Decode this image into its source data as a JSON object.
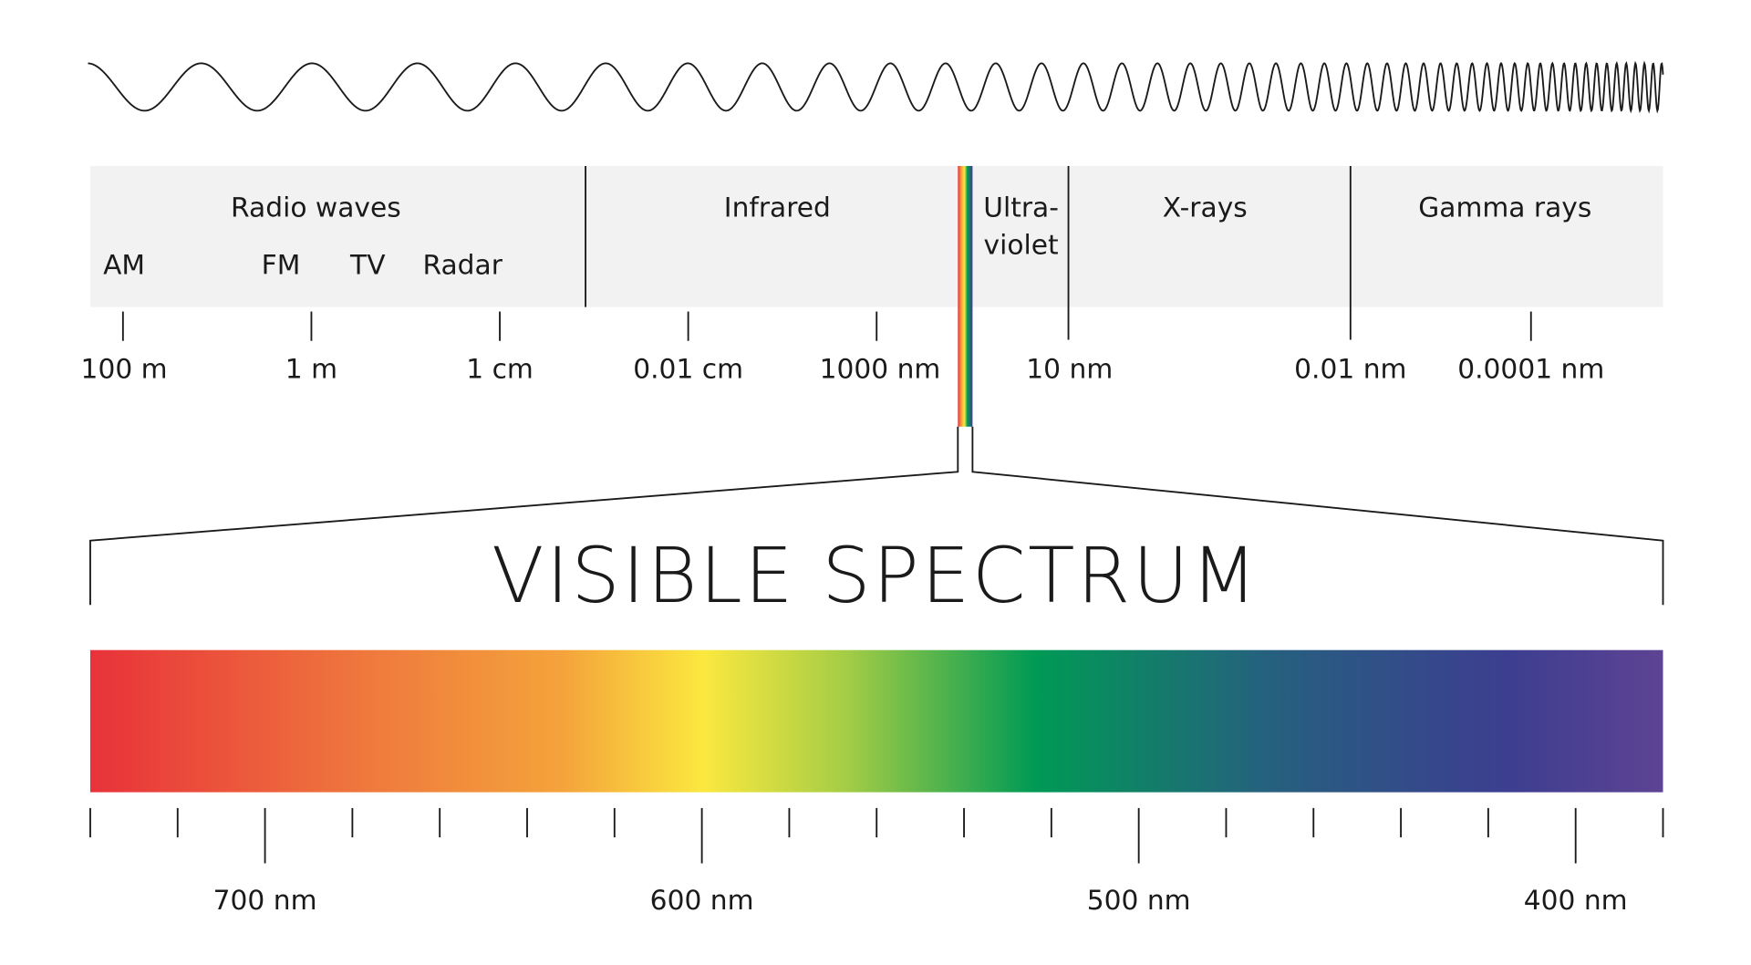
{
  "bands": [
    {
      "lines": [
        "Radio waves"
      ]
    },
    {
      "lines": [
        "Infrared"
      ]
    },
    {
      "lines": [
        "Ultra-",
        "violet"
      ]
    },
    {
      "lines": [
        "X-rays"
      ]
    },
    {
      "lines": [
        "Gamma rays"
      ]
    }
  ],
  "radio_subbands": [
    "AM",
    "FM",
    "TV",
    "Radar"
  ],
  "scale_labels": [
    "100 m",
    "1 m",
    "1 cm",
    "0.01 cm",
    "1000 nm",
    "10 nm",
    "0.01 nm",
    "0.0001 nm"
  ],
  "visible": {
    "title": "VISIBLE SPECTRUM",
    "labels": [
      "700 nm",
      "600 nm",
      "500 nm",
      "400 nm"
    ]
  }
}
